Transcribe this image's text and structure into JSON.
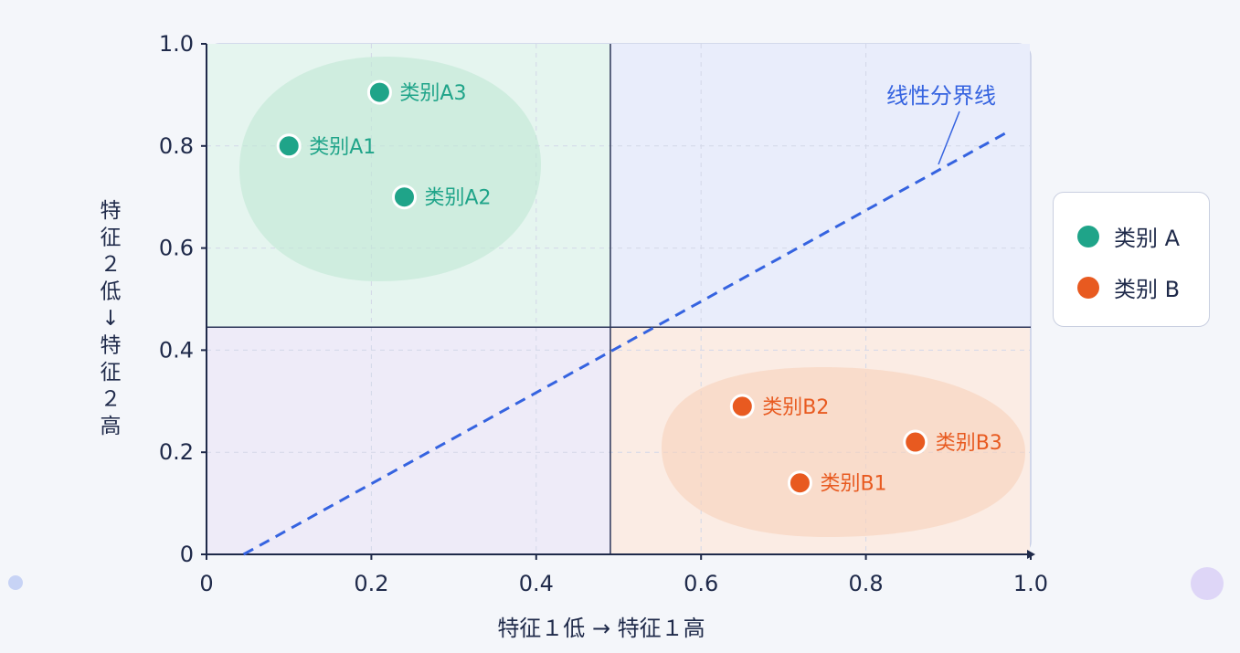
{
  "chart_data": {
    "type": "scatter",
    "title": "",
    "xlabel": "特征１低 → 特征１高",
    "ylabel": "特征２低↓特征２高",
    "xlim": [
      0,
      1.0
    ],
    "ylim": [
      0,
      1.0
    ],
    "x_ticks": [
      "0",
      "0.2",
      "0.4",
      "0.6",
      "0.8",
      "1.0"
    ],
    "y_ticks": [
      "0",
      "0.2",
      "0.4",
      "0.6",
      "0.8",
      "1.0"
    ],
    "grid": true,
    "legend_position": "right",
    "series": [
      {
        "name": "类别 A",
        "color": "#1fa489",
        "points": [
          {
            "label": "类别A1",
            "x": 0.1,
            "y": 0.8
          },
          {
            "label": "类别A2",
            "x": 0.24,
            "y": 0.7
          },
          {
            "label": "类别A3",
            "x": 0.21,
            "y": 0.905
          }
        ]
      },
      {
        "name": "类别 B",
        "color": "#e85a20",
        "points": [
          {
            "label": "类别B1",
            "x": 0.72,
            "y": 0.14
          },
          {
            "label": "类别B2",
            "x": 0.65,
            "y": 0.29
          },
          {
            "label": "类别B3",
            "x": 0.86,
            "y": 0.22
          }
        ]
      }
    ],
    "quadrant_split": {
      "x": 0.49,
      "y": 0.445
    },
    "boundary": {
      "label": "线性分界线",
      "color": "#3563e0",
      "from": {
        "x": 0.045,
        "y": 0.0
      },
      "to": {
        "x": 0.975,
        "y": 0.83
      }
    }
  }
}
